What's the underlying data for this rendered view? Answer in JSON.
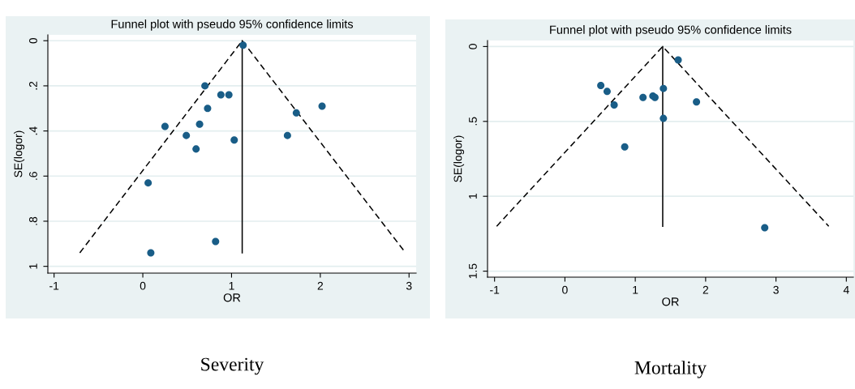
{
  "chart_data": [
    {
      "type": "scatter",
      "title": "Funnel plot with pseudo 95% confidence limits",
      "xlabel": "OR",
      "ylabel": "SE(logor)",
      "xlim": [
        -1.07,
        3.08
      ],
      "xticks": [
        -1,
        0,
        1,
        2,
        3
      ],
      "ylim": [
        1.03,
        -0.026
      ],
      "yticks": [
        0,
        {
          "value": 0.2,
          "label": ".2"
        },
        {
          "value": 0.4,
          "label": ".4"
        },
        {
          "value": 0.6,
          "label": ".6"
        },
        {
          "value": 0.8,
          "label": ".8"
        },
        1
      ],
      "grid": "y",
      "annotations": [
        "Severity"
      ],
      "series": [
        {
          "marker": "circle",
          "color": "#195d87",
          "x": [
            1.13,
            0.7,
            0.88,
            0.97,
            0.73,
            1.73,
            2.02,
            0.25,
            0.64,
            0.49,
            1.03,
            1.63,
            0.6,
            0.06,
            0.82,
            0.09
          ],
          "values": [
            0.02,
            0.2,
            0.24,
            0.24,
            0.3,
            0.32,
            0.29,
            0.38,
            0.37,
            0.42,
            0.44,
            0.42,
            0.48,
            0.63,
            0.89,
            0.94
          ]
        },
        {
          "type": "line",
          "color": "#000000",
          "line_style": "dashed",
          "x": [
            -0.71,
            1.12,
            2.96
          ],
          "values": [
            0.94,
            0,
            0.94
          ]
        },
        {
          "type": "line",
          "color": "#000000",
          "line_style": "solid",
          "x": [
            1.12,
            1.12
          ],
          "values": [
            0,
            0.94
          ]
        }
      ]
    },
    {
      "type": "scatter",
      "title": "Funnel plot with pseudo 95% confidence limits",
      "xlabel": "OR",
      "ylabel": "SE(logor)",
      "xlim": [
        -1.1,
        4.1
      ],
      "xticks": [
        -1,
        0,
        1,
        2,
        3,
        4
      ],
      "ylim": [
        1.54,
        -0.04
      ],
      "yticks": [
        0,
        {
          "value": 0.5,
          "label": ".5"
        },
        1,
        1.5
      ],
      "grid": "y",
      "annotations": [
        "Mortality"
      ],
      "series": [
        {
          "marker": "circle",
          "color": "#195d87",
          "x": [
            1.61,
            0.51,
            0.6,
            0.7,
            1.11,
            1.25,
            1.28,
            1.4,
            1.87,
            1.4,
            0.85,
            2.84
          ],
          "values": [
            0.09,
            0.26,
            0.3,
            0.39,
            0.34,
            0.33,
            0.34,
            0.28,
            0.37,
            0.48,
            0.67,
            1.21
          ]
        },
        {
          "type": "line",
          "color": "#000000",
          "line_style": "dashed",
          "x": [
            -0.97,
            1.39,
            3.75
          ],
          "values": [
            1.2,
            0,
            1.2
          ]
        },
        {
          "type": "line",
          "color": "#000000",
          "line_style": "solid",
          "x": [
            1.39,
            1.39
          ],
          "values": [
            0,
            1.2
          ]
        }
      ]
    }
  ]
}
